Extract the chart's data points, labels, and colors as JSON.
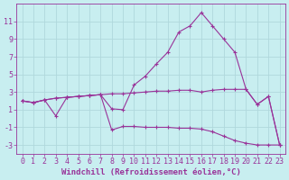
{
  "bg_color": "#c8eef0",
  "grid_color": "#b0d8dc",
  "line_color": "#993399",
  "xlabel": "Windchill (Refroidissement éolien,°C)",
  "x_values": [
    0,
    1,
    2,
    3,
    4,
    5,
    6,
    7,
    8,
    9,
    10,
    11,
    12,
    13,
    14,
    15,
    16,
    17,
    18,
    19,
    20,
    21,
    22,
    23
  ],
  "line1_y": [
    2.0,
    1.8,
    2.1,
    2.3,
    2.4,
    2.5,
    2.6,
    2.7,
    2.8,
    2.8,
    2.9,
    3.0,
    3.1,
    3.1,
    3.2,
    3.2,
    3.0,
    3.2,
    3.3,
    3.3,
    3.3,
    1.6,
    2.5,
    -3.0
  ],
  "line2_y": [
    2.0,
    1.8,
    2.1,
    2.3,
    2.4,
    2.5,
    2.6,
    2.7,
    1.1,
    1.0,
    3.8,
    4.8,
    6.2,
    7.5,
    9.8,
    10.5,
    12.0,
    10.5,
    9.0,
    7.5,
    3.3,
    1.6,
    2.5,
    -3.0
  ],
  "line3_y": [
    2.0,
    1.8,
    2.1,
    0.3,
    2.4,
    2.5,
    2.6,
    2.7,
    -1.3,
    -0.9,
    -0.9,
    -1.0,
    -1.0,
    -1.0,
    -1.1,
    -1.1,
    -1.2,
    -1.5,
    -2.0,
    -2.5,
    -2.8,
    -3.0,
    -3.0,
    -3.0
  ],
  "ylim": [
    -4,
    13
  ],
  "yticks": [
    -3,
    -1,
    1,
    3,
    5,
    7,
    9,
    11
  ],
  "xlim": [
    -0.5,
    23.5
  ],
  "fontsize_xlabel": 6.5,
  "fontsize_tick": 6
}
